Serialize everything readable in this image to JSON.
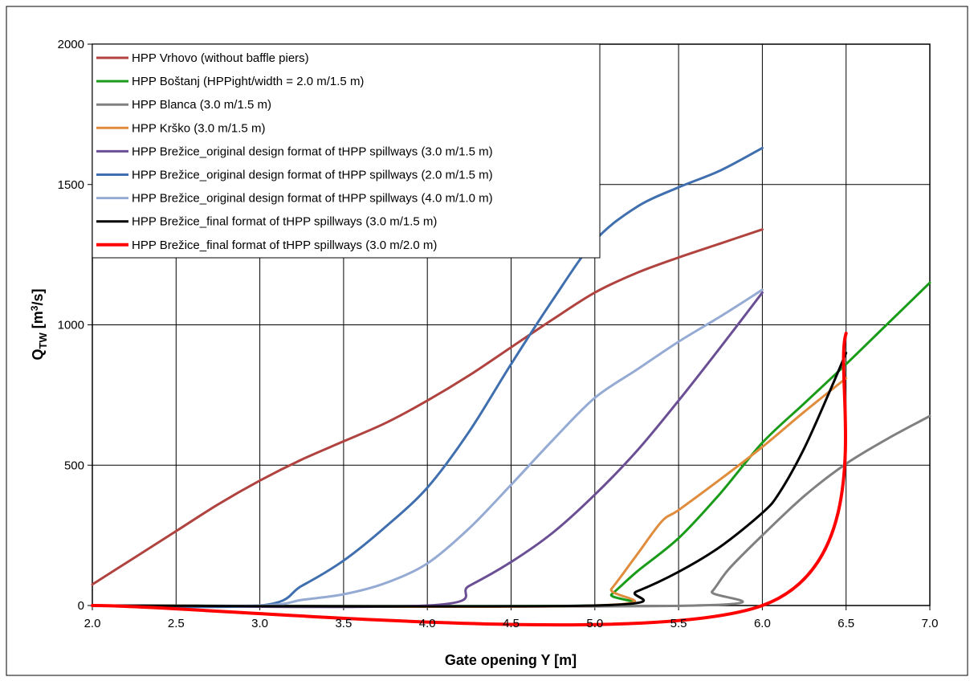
{
  "chart_data": {
    "type": "line",
    "xlabel": "Gate opening Y [m]",
    "ylabel": "Q",
    "ylabel_sub": "TW",
    "ylabel_unit_pre": " [m",
    "ylabel_unit_sup": "3",
    "ylabel_unit_post": "/s]",
    "xlim": [
      2.0,
      7.0
    ],
    "ylim": [
      0,
      2000
    ],
    "xticks": [
      "2.0",
      "2.5",
      "3.0",
      "3.5",
      "4.0",
      "4.5",
      "5.0",
      "5.5",
      "6.0",
      "6.5",
      "7.0"
    ],
    "yticks": [
      "0",
      "500",
      "1000",
      "1500",
      "2000"
    ],
    "grid": true,
    "legend_position": "top-left",
    "series": [
      {
        "name": "HPP Vrhovo (without baffle piers)",
        "color": "#b0433f",
        "points": [
          [
            2.0,
            75
          ],
          [
            2.25,
            170
          ],
          [
            2.5,
            265
          ],
          [
            2.75,
            360
          ],
          [
            3.0,
            445
          ],
          [
            3.25,
            520
          ],
          [
            3.5,
            585
          ],
          [
            3.75,
            650
          ],
          [
            4.0,
            730
          ],
          [
            4.25,
            820
          ],
          [
            4.5,
            920
          ],
          [
            4.75,
            1020
          ],
          [
            5.0,
            1115
          ],
          [
            5.25,
            1185
          ],
          [
            5.5,
            1240
          ],
          [
            5.75,
            1290
          ],
          [
            6.0,
            1340
          ]
        ]
      },
      {
        "name": "HPP Boštanj (HPPight/width = 2.0 m/1.5 m)",
        "color": "#1a9c1a",
        "points": [
          [
            2.0,
            0
          ],
          [
            5.0,
            0
          ],
          [
            5.1,
            40
          ],
          [
            5.25,
            120
          ],
          [
            5.5,
            240
          ],
          [
            5.75,
            400
          ],
          [
            6.0,
            580
          ],
          [
            6.25,
            720
          ],
          [
            6.5,
            860
          ],
          [
            6.75,
            1005
          ],
          [
            7.0,
            1150
          ]
        ]
      },
      {
        "name": "HPP Blanca (3.0 m/1.5 m)",
        "color": "#808080",
        "points": [
          [
            2.0,
            0
          ],
          [
            5.6,
            0
          ],
          [
            5.7,
            50
          ],
          [
            5.8,
            130
          ],
          [
            6.0,
            250
          ],
          [
            6.25,
            390
          ],
          [
            6.5,
            505
          ],
          [
            6.75,
            595
          ],
          [
            7.0,
            675
          ]
        ]
      },
      {
        "name": "HPP Krško (3.0 m/1.5 m)",
        "color": "#e08c3c",
        "points": [
          [
            2.0,
            0
          ],
          [
            5.0,
            0
          ],
          [
            5.1,
            60
          ],
          [
            5.25,
            180
          ],
          [
            5.4,
            300
          ],
          [
            5.5,
            340
          ],
          [
            5.75,
            450
          ],
          [
            6.0,
            565
          ],
          [
            6.25,
            690
          ],
          [
            6.5,
            810
          ]
        ]
      },
      {
        "name": "HPP Brežice_original design format of tHPP spillways (3.0 m/1.5 m)",
        "color": "#6b4f94",
        "points": [
          [
            2.0,
            0
          ],
          [
            4.0,
            0
          ],
          [
            4.25,
            70
          ],
          [
            4.5,
            155
          ],
          [
            4.75,
            260
          ],
          [
            5.0,
            395
          ],
          [
            5.25,
            550
          ],
          [
            5.5,
            730
          ],
          [
            5.75,
            920
          ],
          [
            6.0,
            1115
          ]
        ]
      },
      {
        "name": "HPP Brežice_original design format of tHPP spillways (2.0 m/1.5 m)",
        "color": "#3f6fae",
        "points": [
          [
            2.0,
            0
          ],
          [
            3.0,
            0
          ],
          [
            3.25,
            70
          ],
          [
            3.5,
            160
          ],
          [
            3.75,
            280
          ],
          [
            4.0,
            420
          ],
          [
            4.25,
            620
          ],
          [
            4.5,
            860
          ],
          [
            4.75,
            1090
          ],
          [
            5.0,
            1300
          ],
          [
            5.25,
            1420
          ],
          [
            5.5,
            1490
          ],
          [
            5.75,
            1550
          ],
          [
            6.0,
            1630
          ]
        ]
      },
      {
        "name": "HPP Brežice_original design format of tHPP spillways (4.0 m/1.0 m)",
        "color": "#95abd4",
        "points": [
          [
            2.0,
            0
          ],
          [
            3.0,
            0
          ],
          [
            3.25,
            20
          ],
          [
            3.5,
            40
          ],
          [
            3.75,
            80
          ],
          [
            4.0,
            150
          ],
          [
            4.25,
            275
          ],
          [
            4.5,
            430
          ],
          [
            4.75,
            590
          ],
          [
            5.0,
            740
          ],
          [
            5.25,
            840
          ],
          [
            5.5,
            940
          ],
          [
            5.75,
            1030
          ],
          [
            6.0,
            1125
          ]
        ]
      },
      {
        "name": "HPP Brežice_final format of tHPP spillways (3.0 m/1.5 m)",
        "color": "#000000",
        "points": [
          [
            2.0,
            0
          ],
          [
            5.0,
            0
          ],
          [
            5.25,
            50
          ],
          [
            5.5,
            120
          ],
          [
            5.75,
            210
          ],
          [
            6.0,
            330
          ],
          [
            6.1,
            400
          ],
          [
            6.25,
            560
          ],
          [
            6.4,
            760
          ],
          [
            6.5,
            900
          ]
        ]
      },
      {
        "name": "HPP Brežice_final format of tHPP spillways (3.0 m/2.0 m)",
        "color": "#ff0000",
        "points": [
          [
            2.0,
            0
          ],
          [
            6.0,
            0
          ],
          [
            6.5,
            970
          ]
        ]
      }
    ]
  }
}
